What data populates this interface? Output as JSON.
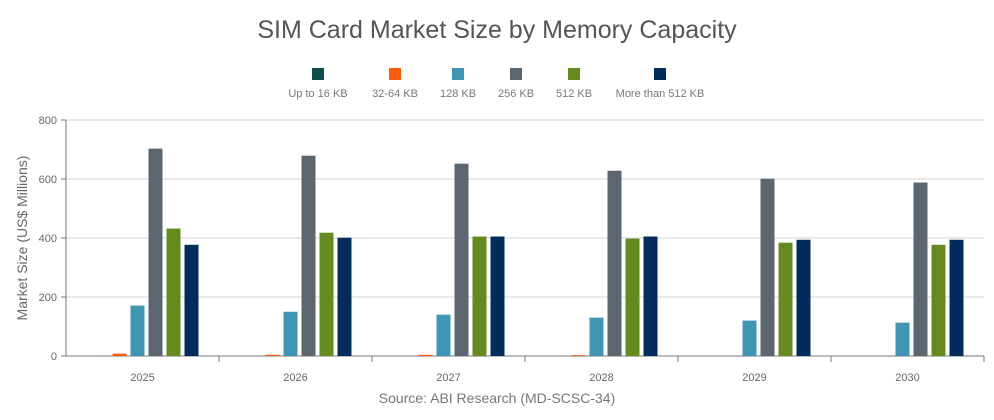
{
  "chart_data": {
    "type": "bar",
    "title": "SIM Card Market Size by Memory Capacity",
    "ylabel": "Market Size (US$ Millions)",
    "xlabel": "",
    "source": "Source: ABI Research (MD-SCSC-34)",
    "ylim": [
      0,
      800
    ],
    "yticks": [
      "0",
      "200",
      "400",
      "600",
      "800"
    ],
    "grid": true,
    "legend_position": "top",
    "categories": [
      "2025",
      "2026",
      "2027",
      "2028",
      "2029",
      "2030"
    ],
    "series": [
      {
        "name": "Up to 16 KB",
        "color": "#0b4f4a",
        "values": [
          0,
          0,
          0,
          0,
          0,
          0
        ]
      },
      {
        "name": "32-64 KB",
        "color": "#ff5a0a",
        "values": [
          8,
          4,
          4,
          3,
          0,
          0
        ]
      },
      {
        "name": "128 KB",
        "color": "#3f96b4",
        "values": [
          171,
          150,
          140,
          130,
          120,
          113
        ]
      },
      {
        "name": "256 KB",
        "color": "#5b6670",
        "values": [
          703,
          679,
          652,
          628,
          601,
          588
        ]
      },
      {
        "name": "512 KB",
        "color": "#658b1f",
        "values": [
          432,
          418,
          405,
          398,
          384,
          377
        ]
      },
      {
        "name": "More than 512 KB",
        "color": "#022c5c",
        "values": [
          377,
          401,
          405,
          405,
          394,
          394
        ]
      }
    ]
  }
}
